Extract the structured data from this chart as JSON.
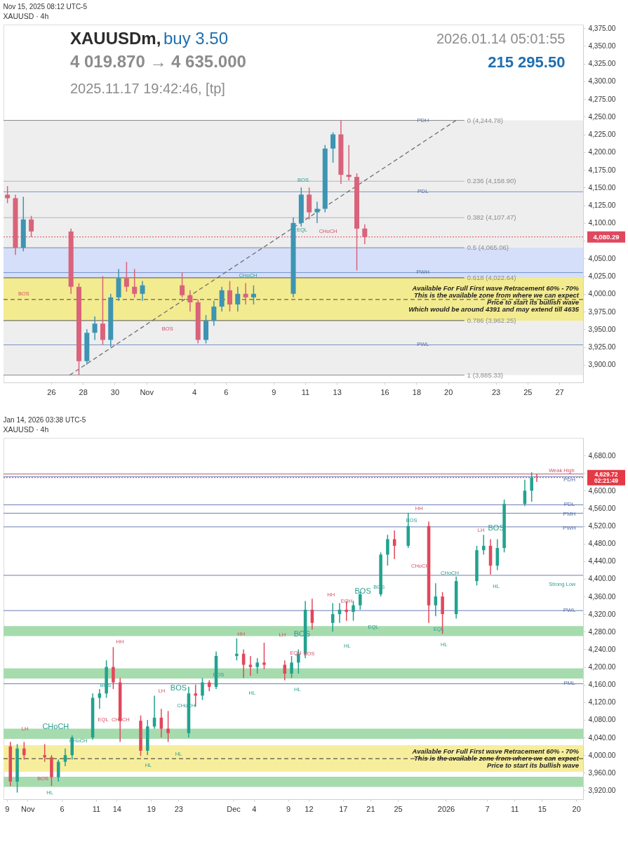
{
  "chart_data": [
    {
      "type": "candlestick",
      "title": "Nov 15, 2025 08:12 UTC-5",
      "subtitle": "XAUUSD · 4h",
      "x": [
        "2025-10-23T06:00",
        "2025-10-23T18:00",
        "2025-10-24T06:00",
        "2025-10-24T18:00",
        "2025-10-27T06:00",
        "2025-10-27T18:00",
        "2025-10-28T06:00",
        "2025-10-28T18:00",
        "2025-10-29T06:00",
        "2025-10-29T18:00",
        "2025-10-30T06:00",
        "2025-10-30T18:00",
        "2025-10-31T06:00",
        "2025-10-31T18:00",
        "2025-11-03T06:00",
        "2025-11-03T18:00",
        "2025-11-04T06:00",
        "2025-11-04T18:00",
        "2025-11-05T06:00",
        "2025-11-05T18:00",
        "2025-11-06T06:00",
        "2025-11-06T18:00",
        "2025-11-07T06:00",
        "2025-11-07T18:00",
        "2025-11-10T06:00",
        "2025-11-10T18:00",
        "2025-11-11T06:00",
        "2025-11-11T18:00",
        "2025-11-12T06:00",
        "2025-11-12T18:00",
        "2025-11-13T06:00",
        "2025-11-13T18:00",
        "2025-11-14T06:00",
        "2025-11-14T18:00"
      ],
      "ohlc": [
        [
          4140,
          4152,
          4128,
          4135
        ],
        [
          4135,
          4140,
          4055,
          4065
        ],
        [
          4065,
          4137,
          4060,
          4105
        ],
        [
          4105,
          4110,
          4080,
          4088
        ],
        [
          4088,
          4092,
          4000,
          4010
        ],
        [
          4010,
          4015,
          3885.33,
          3905
        ],
        [
          3905,
          3950,
          3900,
          3945
        ],
        [
          3945,
          3968,
          3935,
          3958
        ],
        [
          3958,
          4025,
          3928,
          3935
        ],
        [
          3935,
          4000,
          3925,
          3995
        ],
        [
          3995,
          4035,
          3990,
          4022
        ],
        [
          4022,
          4045,
          4003,
          4010
        ],
        [
          4010,
          4035,
          3995,
          4000
        ],
        [
          4000,
          4018,
          3990,
          4012
        ],
        [
          4012,
          4030,
          3995,
          3998
        ],
        [
          3998,
          4005,
          3975,
          3988
        ],
        [
          3988,
          3992,
          3930,
          3935
        ],
        [
          3935,
          3970,
          3930,
          3962
        ],
        [
          3962,
          3990,
          3955,
          3982
        ],
        [
          3982,
          4010,
          3975,
          4005
        ],
        [
          4005,
          4018,
          3975,
          3985
        ],
        [
          3985,
          4010,
          3975,
          4000
        ],
        [
          4000,
          4015,
          3985,
          3995
        ],
        [
          3995,
          4012,
          3985,
          4000
        ],
        [
          4000,
          4108,
          3995,
          4100
        ],
        [
          4100,
          4150,
          4095,
          4140
        ],
        [
          4140,
          4150,
          4105,
          4115
        ],
        [
          4115,
          4130,
          4100,
          4120
        ],
        [
          4120,
          4210,
          4115,
          4205
        ],
        [
          4205,
          4228,
          4185,
          4225
        ],
        [
          4225,
          4244.78,
          4155,
          4168
        ],
        [
          4168,
          4210,
          4160,
          4165
        ],
        [
          4165,
          4170,
          4033,
          4092
        ],
        [
          4092,
          4098,
          4070,
          4080.29
        ]
      ],
      "colors": [
        "#d9637b",
        "#d9637b",
        "#3d94b3",
        "#d9637b",
        "#d9637b",
        "#d9637b",
        "#3d94b3",
        "#3d94b3",
        "#d9637b",
        "#3d94b3",
        "#3d94b3",
        "#d9637b",
        "#d9637b",
        "#3d94b3",
        "#d9637b",
        "#d9637b",
        "#d9637b",
        "#3d94b3",
        "#3d94b3",
        "#3d94b3",
        "#d9637b",
        "#3d94b3",
        "#d9637b",
        "#3d94b3",
        "#3d94b3",
        "#3d94b3",
        "#d9637b",
        "#3d94b3",
        "#3d94b3",
        "#3d94b3",
        "#d9637b",
        "#d9637b",
        "#d9637b",
        "#d9637b"
      ],
      "series": [
        {
          "type": "line",
          "x": [
            "2025-10-27T04:00",
            "2025-11-20T12:00"
          ],
          "values": [
            3885.33,
            4244.78
          ],
          "color": "#6e6e6e",
          "line_style": "dashed"
        }
      ],
      "xlim": [
        "2025-10-23",
        "2025-11-28T12:00"
      ],
      "xticks": [
        {
          "value": "2025-10-26",
          "label": "26"
        },
        {
          "value": "2025-10-28",
          "label": "28"
        },
        {
          "value": "2025-10-30",
          "label": "30"
        },
        {
          "value": "2025-11-01",
          "label": "Nov"
        },
        {
          "value": "2025-11-04",
          "label": "4"
        },
        {
          "value": "2025-11-06",
          "label": "6"
        },
        {
          "value": "2025-11-09",
          "label": "9"
        },
        {
          "value": "2025-11-11",
          "label": "11"
        },
        {
          "value": "2025-11-13",
          "label": "13"
        },
        {
          "value": "2025-11-16",
          "label": "16"
        },
        {
          "value": "2025-11-18",
          "label": "18"
        },
        {
          "value": "2025-11-20",
          "label": "20"
        },
        {
          "value": "2025-11-23",
          "label": "23"
        },
        {
          "value": "2025-11-25",
          "label": "25"
        },
        {
          "value": "2025-11-27",
          "label": "27"
        }
      ],
      "ylim": [
        3875,
        4380
      ],
      "yticks": [
        {
          "value": 3900,
          "label": "3,900.00"
        },
        {
          "value": 3925,
          "label": "3,925.00"
        },
        {
          "value": 3950,
          "label": "3,950.00"
        },
        {
          "value": 3975,
          "label": "3,975.00"
        },
        {
          "value": 4000,
          "label": "4,000.00"
        },
        {
          "value": 4025,
          "label": "4,025.00"
        },
        {
          "value": 4050,
          "label": "4,050.00"
        },
        {
          "value": 4075,
          "label": null
        },
        {
          "value": 4100,
          "label": "4,100.00"
        },
        {
          "value": 4125,
          "label": "4,125.00"
        },
        {
          "value": 4150,
          "label": "4,150.00"
        },
        {
          "value": 4175,
          "label": "4,175.00"
        },
        {
          "value": 4200,
          "label": "4,200.00"
        },
        {
          "value": 4225,
          "label": "4,225.00"
        },
        {
          "value": 4250,
          "label": "4,250.00"
        },
        {
          "value": 4275,
          "label": "4,275.00"
        },
        {
          "value": 4300,
          "label": "4,300.00"
        },
        {
          "value": 4325,
          "label": "4,325.00"
        },
        {
          "value": 4350,
          "label": "4,350.00"
        },
        {
          "value": 4375,
          "label": "4,375.00"
        }
      ],
      "bands": [
        {
          "axis": "y",
          "from": 4065.06,
          "to": 4244.78,
          "color": "#eeeeee"
        },
        {
          "axis": "y",
          "from": 3962.25,
          "to": 4065.06,
          "color": "#d5dffa"
        },
        {
          "axis": "y",
          "from": 3885.33,
          "to": 3962.25,
          "color": "#eeeeee"
        },
        {
          "axis": "y",
          "from": 3962.25,
          "to": 4022.64,
          "color": "#f3eb8f",
          "label": "Available For Full First wave Retracement 60% - 70%\nThis is the available zone from where we can expect\nPrice to start its bullish wave\nWhich would be around 4391 and may extend till 4635"
        }
      ],
      "ref_lines": [
        {
          "axis": "y",
          "value": 4244.78,
          "label": "0 (4,244.78)",
          "color": "#8a8a8a"
        },
        {
          "axis": "y",
          "value": 4158.9,
          "label": "0.236 (4,158.90)",
          "color": "#b5b5b5"
        },
        {
          "axis": "y",
          "value": 4107.47,
          "label": "0.382 (4,107.47)",
          "color": "#b5b5b5"
        },
        {
          "axis": "y",
          "value": 4065.06,
          "label": "0.5 (4,065.06)",
          "color": "#8a8a8a"
        },
        {
          "axis": "y",
          "value": 4022.64,
          "label": "0.618 (4,022.64)",
          "color": "#555555"
        },
        {
          "axis": "y",
          "value": 3962.25,
          "label": "0.786 (3,962.25)",
          "color": "#555555"
        },
        {
          "axis": "y",
          "value": 3885.33,
          "label": "1 (3,885.33)",
          "color": "#8a8a8a"
        },
        {
          "axis": "y",
          "value": 4144,
          "color": "#7a93c4"
        },
        {
          "axis": "y",
          "value": 4030,
          "color": "#7a93c4"
        },
        {
          "axis": "y",
          "value": 3928,
          "color": "#7a93c4"
        },
        {
          "axis": "y",
          "value": 3992,
          "color": "#444444",
          "line_style": "dashed"
        },
        {
          "axis": "y",
          "value": 4080.29,
          "label": "4,080.29",
          "color": "#e0485e",
          "line_style": "dotted"
        }
      ],
      "annotations": [
        "XAUUSDm,",
        "buy 3.50",
        "4 019.870 → 4 635.000",
        "2025.11.17 19:42:46, [tp]",
        "2026.01.14 05:01:55",
        "215 295.50",
        "BOS",
        "BOS",
        "CHoCH",
        "BOS",
        "EQL",
        "CHoCH",
        {
          "text": "PDH",
          "x": "2025-11-18T10:00",
          "y": 4244.78
        },
        {
          "text": "PDL",
          "x": "2025-11-18T10:00",
          "y": 4144
        },
        {
          "text": "PWH",
          "x": "2025-11-18T10:00",
          "y": 4030
        },
        {
          "text": "PWL",
          "x": "2025-11-18T10:00",
          "y": 3928
        }
      ]
    },
    {
      "type": "candlestick",
      "title": "Jan 14, 2026 03:38 UTC-5",
      "subtitle": "XAUUSD · 4h",
      "x": [
        "2025-10-29T12:00",
        "2025-10-30T12:00",
        "2025-10-31T12:00",
        "2025-11-03T12:00",
        "2025-11-04T12:00",
        "2025-11-05T12:00",
        "2025-11-06T12:00",
        "2025-11-07T12:00",
        "2025-11-10T12:00",
        "2025-11-11T12:00",
        "2025-11-12T12:00",
        "2025-11-13T12:00",
        "2025-11-14T12:00",
        "2025-11-17T12:00",
        "2025-11-18T12:00",
        "2025-11-19T12:00",
        "2025-11-20T12:00",
        "2025-11-21T12:00",
        "2025-11-24T12:00",
        "2025-11-25T12:00",
        "2025-11-26T12:00",
        "2025-11-27T12:00",
        "2025-11-28T12:00",
        "2025-12-01T12:00",
        "2025-12-02T12:00",
        "2025-12-03T12:00",
        "2025-12-04T12:00",
        "2025-12-05T12:00",
        "2025-12-08T12:00",
        "2025-12-09T12:00",
        "2025-12-10T12:00",
        "2025-12-11T12:00",
        "2025-12-12T12:00",
        "2025-12-15T12:00",
        "2025-12-16T12:00",
        "2025-12-17T12:00",
        "2025-12-18T12:00",
        "2025-12-19T12:00",
        "2025-12-22T12:00",
        "2025-12-23T12:00",
        "2025-12-24T12:00",
        "2025-12-26T12:00",
        "2025-12-29T12:00",
        "2025-12-30T12:00",
        "2025-12-31T12:00",
        "2026-01-02T12:00",
        "2026-01-05T12:00",
        "2026-01-06T12:00",
        "2026-01-07T12:00",
        "2026-01-08T12:00",
        "2026-01-09T12:00",
        "2026-01-12T12:00",
        "2026-01-13T12:00",
        "2026-01-14T06:00"
      ],
      "ohlc": [
        [
          4020,
          4030,
          3930,
          3940
        ],
        [
          3940,
          4025,
          3915,
          4015
        ],
        [
          4015,
          4030,
          3990,
          4000
        ],
        [
          4000,
          4025,
          3985,
          3995
        ],
        [
          3995,
          4000,
          3930,
          3950
        ],
        [
          3950,
          3990,
          3940,
          3985
        ],
        [
          3985,
          4015,
          3975,
          4000
        ],
        [
          4000,
          4045,
          3990,
          4040
        ],
        [
          4040,
          4140,
          4035,
          4130
        ],
        [
          4130,
          4150,
          4105,
          4140
        ],
        [
          4140,
          4215,
          4130,
          4200
        ],
        [
          4200,
          4245,
          4150,
          4165
        ],
        [
          4165,
          4175,
          4030,
          4078
        ],
        [
          4078,
          4090,
          3998,
          4010
        ],
        [
          4010,
          4080,
          4000,
          4065
        ],
        [
          4065,
          4135,
          4060,
          4085
        ],
        [
          4085,
          4105,
          4040,
          4060
        ],
        [
          4060,
          4100,
          4030,
          4050
        ],
        [
          4050,
          4155,
          4040,
          4140
        ],
        [
          4140,
          4160,
          4110,
          4135
        ],
        [
          4135,
          4175,
          4125,
          4165
        ],
        [
          4165,
          4170,
          4145,
          4155
        ],
        [
          4155,
          4235,
          4150,
          4225
        ],
        [
          4225,
          4265,
          4215,
          4230
        ],
        [
          4230,
          4240,
          4175,
          4205
        ],
        [
          4205,
          4225,
          4180,
          4200
        ],
        [
          4200,
          4220,
          4185,
          4210
        ],
        [
          4210,
          4255,
          4195,
          4205
        ],
        [
          4205,
          4215,
          4170,
          4185
        ],
        [
          4185,
          4225,
          4175,
          4210
        ],
        [
          4210,
          4240,
          4185,
          4230
        ],
        [
          4230,
          4350,
          4220,
          4330
        ],
        [
          4330,
          4355,
          4285,
          4300
        ],
        [
          4300,
          4345,
          4280,
          4320
        ],
        [
          4320,
          4345,
          4300,
          4330
        ],
        [
          4330,
          4350,
          4305,
          4325
        ],
        [
          4325,
          4350,
          4305,
          4340
        ],
        [
          4340,
          4370,
          4330,
          4365
        ],
        [
          4365,
          4460,
          4360,
          4455
        ],
        [
          4455,
          4500,
          4430,
          4490
        ],
        [
          4490,
          4510,
          4445,
          4475
        ],
        [
          4475,
          4550,
          4470,
          4520
        ],
        [
          4520,
          4530,
          4300,
          4340
        ],
        [
          4340,
          4390,
          4315,
          4360
        ],
        [
          4360,
          4370,
          4275,
          4320
        ],
        [
          4320,
          4405,
          4310,
          4395
        ],
        [
          4395,
          4475,
          4385,
          4465
        ],
        [
          4465,
          4500,
          4455,
          4475
        ],
        [
          4475,
          4490,
          4410,
          4430
        ],
        [
          4430,
          4490,
          4420,
          4470
        ],
        [
          4470,
          4580,
          4460,
          4570
        ],
        [
          4570,
          4625,
          4565,
          4600
        ],
        [
          4600,
          4642,
          4575,
          4630
        ],
        [
          4630,
          4638,
          4620,
          4629.72
        ]
      ],
      "colors": [
        "#e2475b",
        "#22a28f",
        "#e2475b",
        "#e2475b",
        "#e2475b",
        "#22a28f",
        "#22a28f",
        "#22a28f",
        "#22a28f",
        "#22a28f",
        "#22a28f",
        "#e2475b",
        "#e2475b",
        "#e2475b",
        "#22a28f",
        "#22a28f",
        "#e2475b",
        "#e2475b",
        "#22a28f",
        "#e2475b",
        "#22a28f",
        "#e2475b",
        "#22a28f",
        "#22a28f",
        "#e2475b",
        "#e2475b",
        "#22a28f",
        "#e2475b",
        "#e2475b",
        "#22a28f",
        "#22a28f",
        "#22a28f",
        "#e2475b",
        "#22a28f",
        "#22a28f",
        "#e2475b",
        "#22a28f",
        "#22a28f",
        "#22a28f",
        "#22a28f",
        "#e2475b",
        "#22a28f",
        "#e2475b",
        "#22a28f",
        "#e2475b",
        "#22a28f",
        "#22a28f",
        "#22a28f",
        "#e2475b",
        "#22a28f",
        "#22a28f",
        "#22a28f",
        "#22a28f",
        "#e2475b"
      ],
      "xlim": [
        "2025-10-28T12:00",
        "2026-01-21"
      ],
      "xticks": [
        {
          "value": "2025-10-29",
          "label": "9"
        },
        {
          "value": "2025-11-01",
          "label": "Nov"
        },
        {
          "value": "2025-11-06",
          "label": "6"
        },
        {
          "value": "2025-11-11",
          "label": "11"
        },
        {
          "value": "2025-11-14",
          "label": "14"
        },
        {
          "value": "2025-11-19",
          "label": "19"
        },
        {
          "value": "2025-11-23",
          "label": "23"
        },
        {
          "value": "2025-12-01",
          "label": "Dec"
        },
        {
          "value": "2025-12-04",
          "label": "4"
        },
        {
          "value": "2025-12-09",
          "label": "9"
        },
        {
          "value": "2025-12-12",
          "label": "12"
        },
        {
          "value": "2025-12-17",
          "label": "17"
        },
        {
          "value": "2025-12-21",
          "label": "21"
        },
        {
          "value": "2025-12-25",
          "label": "25"
        },
        {
          "value": "2026-01-01",
          "label": "2026"
        },
        {
          "value": "2026-01-07",
          "label": "7"
        },
        {
          "value": "2026-01-11",
          "label": "11"
        },
        {
          "value": "2026-01-15",
          "label": "15"
        },
        {
          "value": "2026-01-20",
          "label": "20"
        }
      ],
      "ylim": [
        3900,
        4720
      ],
      "yticks": [
        {
          "value": 3920,
          "label": "3,920.00"
        },
        {
          "value": 3960,
          "label": "3,960.00"
        },
        {
          "value": 4000,
          "label": "4,000.00"
        },
        {
          "value": 4040,
          "label": "4,040.00"
        },
        {
          "value": 4080,
          "label": "4,080.00"
        },
        {
          "value": 4120,
          "label": "4,120.00"
        },
        {
          "value": 4160,
          "label": "4,160.00"
        },
        {
          "value": 4200,
          "label": "4,200.00"
        },
        {
          "value": 4240,
          "label": "4,240.00"
        },
        {
          "value": 4280,
          "label": "4,280.00"
        },
        {
          "value": 4320,
          "label": "4,320.00"
        },
        {
          "value": 4360,
          "label": "4,360.00"
        },
        {
          "value": 4400,
          "label": "4,400.00"
        },
        {
          "value": 4440,
          "label": "4,440.00"
        },
        {
          "value": 4480,
          "label": "4,480.00"
        },
        {
          "value": 4520,
          "label": "4,520.00"
        },
        {
          "value": 4560,
          "label": "4,560.00"
        },
        {
          "value": 4600,
          "label": "4,600.00"
        },
        {
          "value": 4640,
          "label": null
        },
        {
          "value": 4680,
          "label": "4,680.00"
        }
      ],
      "bands": [
        {
          "axis": "y",
          "from": 3928,
          "to": 3951,
          "color": "#a6dbae"
        },
        {
          "axis": "y",
          "from": 4037,
          "to": 4060,
          "color": "#a6dbae"
        },
        {
          "axis": "y",
          "from": 4174,
          "to": 4197,
          "color": "#a6dbae"
        },
        {
          "axis": "y",
          "from": 4270,
          "to": 4293,
          "color": "#a6dbae"
        },
        {
          "axis": "y",
          "from": 3962.25,
          "to": 4022.64,
          "color": "#f6ee9c",
          "label": "Available For Full First wave Retracement 60% - 70%\nThis is the available zone from where we can expect\nPrice to start its bullish wave"
        }
      ],
      "ref_lines": [
        {
          "axis": "y",
          "value": 4638,
          "color": "#b06070"
        },
        {
          "axis": "y",
          "value": 4632,
          "color": "#6b7fb5"
        },
        {
          "axis": "y",
          "value": 4568,
          "color": "#6b7fb5"
        },
        {
          "axis": "y",
          "value": 4549,
          "color": "#6b7fb5"
        },
        {
          "axis": "y",
          "value": 4518,
          "color": "#6b7fb5"
        },
        {
          "axis": "y",
          "value": 4408,
          "color": "#6b7fb5"
        },
        {
          "axis": "y",
          "value": 4328,
          "color": "#6b7fb5"
        },
        {
          "axis": "y",
          "value": 4162,
          "color": "#6b7fb5"
        },
        {
          "axis": "y",
          "value": 3992,
          "color": "#333333",
          "line_style": "dashed"
        },
        {
          "axis": "y",
          "value": 4629.72,
          "label": "4,629.72\n02:21:49",
          "color": "#e53945",
          "line_style": "dotted"
        }
      ],
      "annotations": [
        "LH",
        "CHoCH",
        "BOS",
        "HL",
        "CHoCH",
        "BOS",
        "EQL",
        "CHoCH",
        "HH",
        "HL",
        "HL",
        "LH",
        "BOS",
        "CHoCH",
        "BOS",
        "HH",
        "HL",
        "LH",
        "BOS",
        "EQH",
        "BOS",
        "HL",
        "HL",
        "HL",
        "HH",
        "EQH",
        "BOS",
        "BOS",
        "EQL",
        "BOS",
        "HH",
        "CHoCH",
        "CHoCH",
        "EQL",
        "LH",
        "BOS",
        "HL",
        "Weak High",
        "Strong Low",
        {
          "text": "PDH",
          "x": "2026-01-19",
          "y": 4625
        },
        {
          "text": "PDL",
          "x": "2026-01-19",
          "y": 4568
        },
        {
          "text": "PMH",
          "x": "2026-01-19",
          "y": 4547
        },
        {
          "text": "PWH",
          "x": "2026-01-19",
          "y": 4515
        },
        {
          "text": "PWL",
          "x": "2026-01-19",
          "y": 4328
        },
        {
          "text": "PML",
          "x": "2026-01-19",
          "y": 4162
        }
      ]
    }
  ]
}
